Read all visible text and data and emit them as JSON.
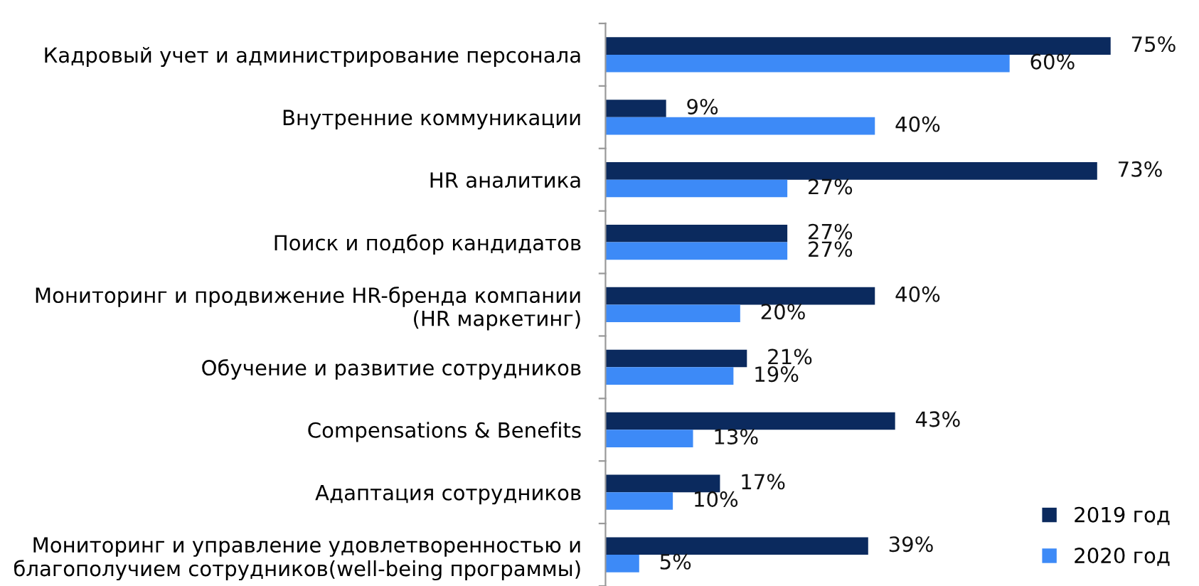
{
  "chart_data": {
    "type": "bar",
    "orientation": "horizontal",
    "legend": "bottom right",
    "categories": [
      "Кадровый учет и администрирование персонала",
      "Внутренние коммуникации",
      "HR аналитика",
      "Поиск и подбор кандидатов",
      "Мониторинг и продвижение HR-бренда компании\n(HR маркетинг)",
      "Обучение и развитие сотрудников",
      "Compensations & Benefits",
      "Адаптация сотрудников",
      "Мониторинг и управление удовлетворенностью и\nблагополучием сотрудников(well-being программы)"
    ],
    "series": [
      {
        "name": "2019 год",
        "color": "#0b2a5e",
        "values": [
          75,
          9,
          73,
          27,
          40,
          21,
          43,
          17,
          39
        ],
        "value_labels": [
          "75%",
          "9%",
          "73%",
          "27%",
          "40%",
          "21%",
          "43%",
          "17%",
          "39%"
        ]
      },
      {
        "name": "2020 год",
        "color": "#3d8af7",
        "values": [
          60,
          40,
          27,
          27,
          20,
          19,
          13,
          10,
          5
        ],
        "value_labels": [
          "60%",
          "40%",
          "27%",
          "27%",
          "20%",
          "19%",
          "13%",
          "10%",
          "5%"
        ]
      }
    ]
  }
}
